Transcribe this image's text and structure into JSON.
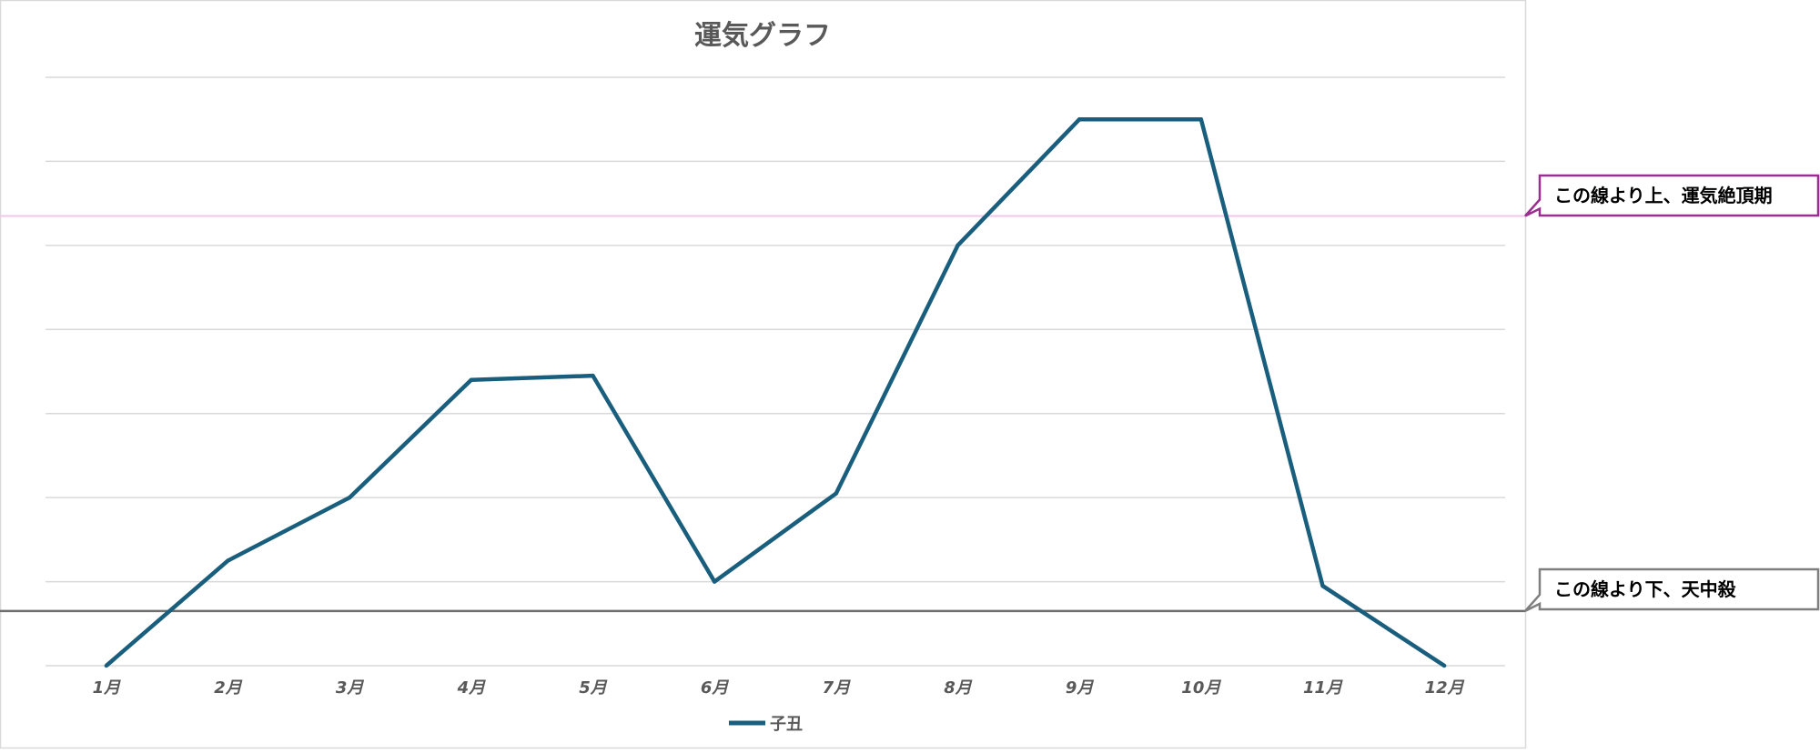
{
  "chart_data": {
    "type": "line",
    "title": "運気グラフ",
    "xlabel": "",
    "ylabel": "",
    "categories": [
      "1月",
      "2月",
      "3月",
      "4月",
      "5月",
      "6月",
      "7月",
      "8月",
      "9月",
      "10月",
      "11月",
      "12月"
    ],
    "series": [
      {
        "name": "子丑",
        "color": "#1a5e7e",
        "values": [
          0,
          1.25,
          2,
          3.4,
          3.45,
          1,
          2.05,
          5,
          6.5,
          6.5,
          0.95,
          0
        ]
      }
    ],
    "ylim": [
      0,
      7
    ],
    "y_gridlines": [
      0,
      1,
      2,
      3,
      4,
      5,
      6,
      7
    ],
    "grid": true,
    "legend_position": "bottom",
    "reference_lines": [
      {
        "value": 5.35,
        "color": "#f2c6e8",
        "label": "この線より上、運気絶頂期",
        "label_border": "#9b2f8f"
      },
      {
        "value": 0.65,
        "color": "#6e6e6e",
        "label": "この線より下、天中殺",
        "label_border": "#7f7f7f"
      }
    ]
  },
  "colors": {
    "gridline": "#d9d9d9",
    "text": "#595959",
    "frame": "#d9d9d9"
  }
}
